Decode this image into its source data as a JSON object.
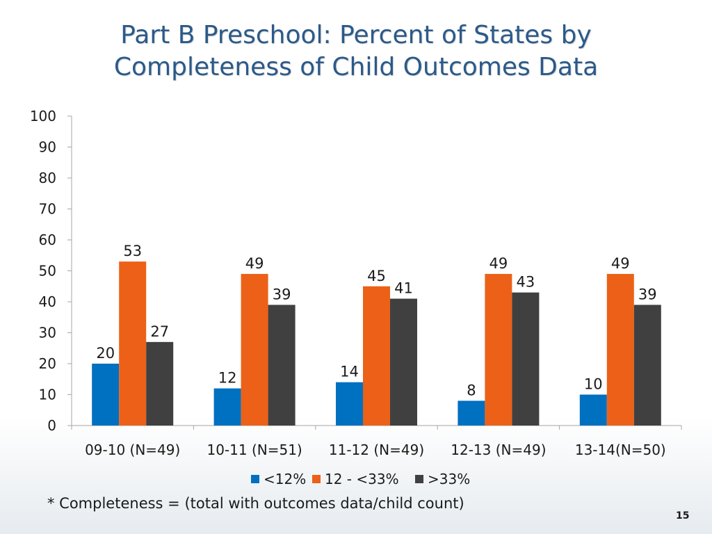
{
  "slide": {
    "title_line1": "Part B Preschool: Percent of States by",
    "title_line2": "Completeness of Child Outcomes Data",
    "footnote": "* Completeness = (total with outcomes data/child count)",
    "page_number": "15"
  },
  "colors": {
    "title": "#2b5a8a",
    "series": [
      "#0070c0",
      "#ec6117",
      "#404040"
    ]
  },
  "chart_data": {
    "type": "bar",
    "title": "Part B Preschool: Percent of States by Completeness of Child Outcomes Data",
    "xlabel": "",
    "ylabel": "",
    "ylim": [
      0,
      100
    ],
    "yticks": [
      0,
      10,
      20,
      30,
      40,
      50,
      60,
      70,
      80,
      90,
      100
    ],
    "grid": false,
    "legend_position": "bottom",
    "categories": [
      "09-10 (N=49)",
      "10-11 (N=51)",
      "11-12 (N=49)",
      "12-13 (N=49)",
      "13-14(N=50)"
    ],
    "series": [
      {
        "name": "<12%",
        "values": [
          20,
          12,
          14,
          8,
          10
        ]
      },
      {
        "name": "12 - <33%",
        "values": [
          53,
          49,
          45,
          49,
          49
        ]
      },
      {
        "name": ">33%",
        "values": [
          27,
          39,
          41,
          43,
          39
        ]
      }
    ]
  }
}
